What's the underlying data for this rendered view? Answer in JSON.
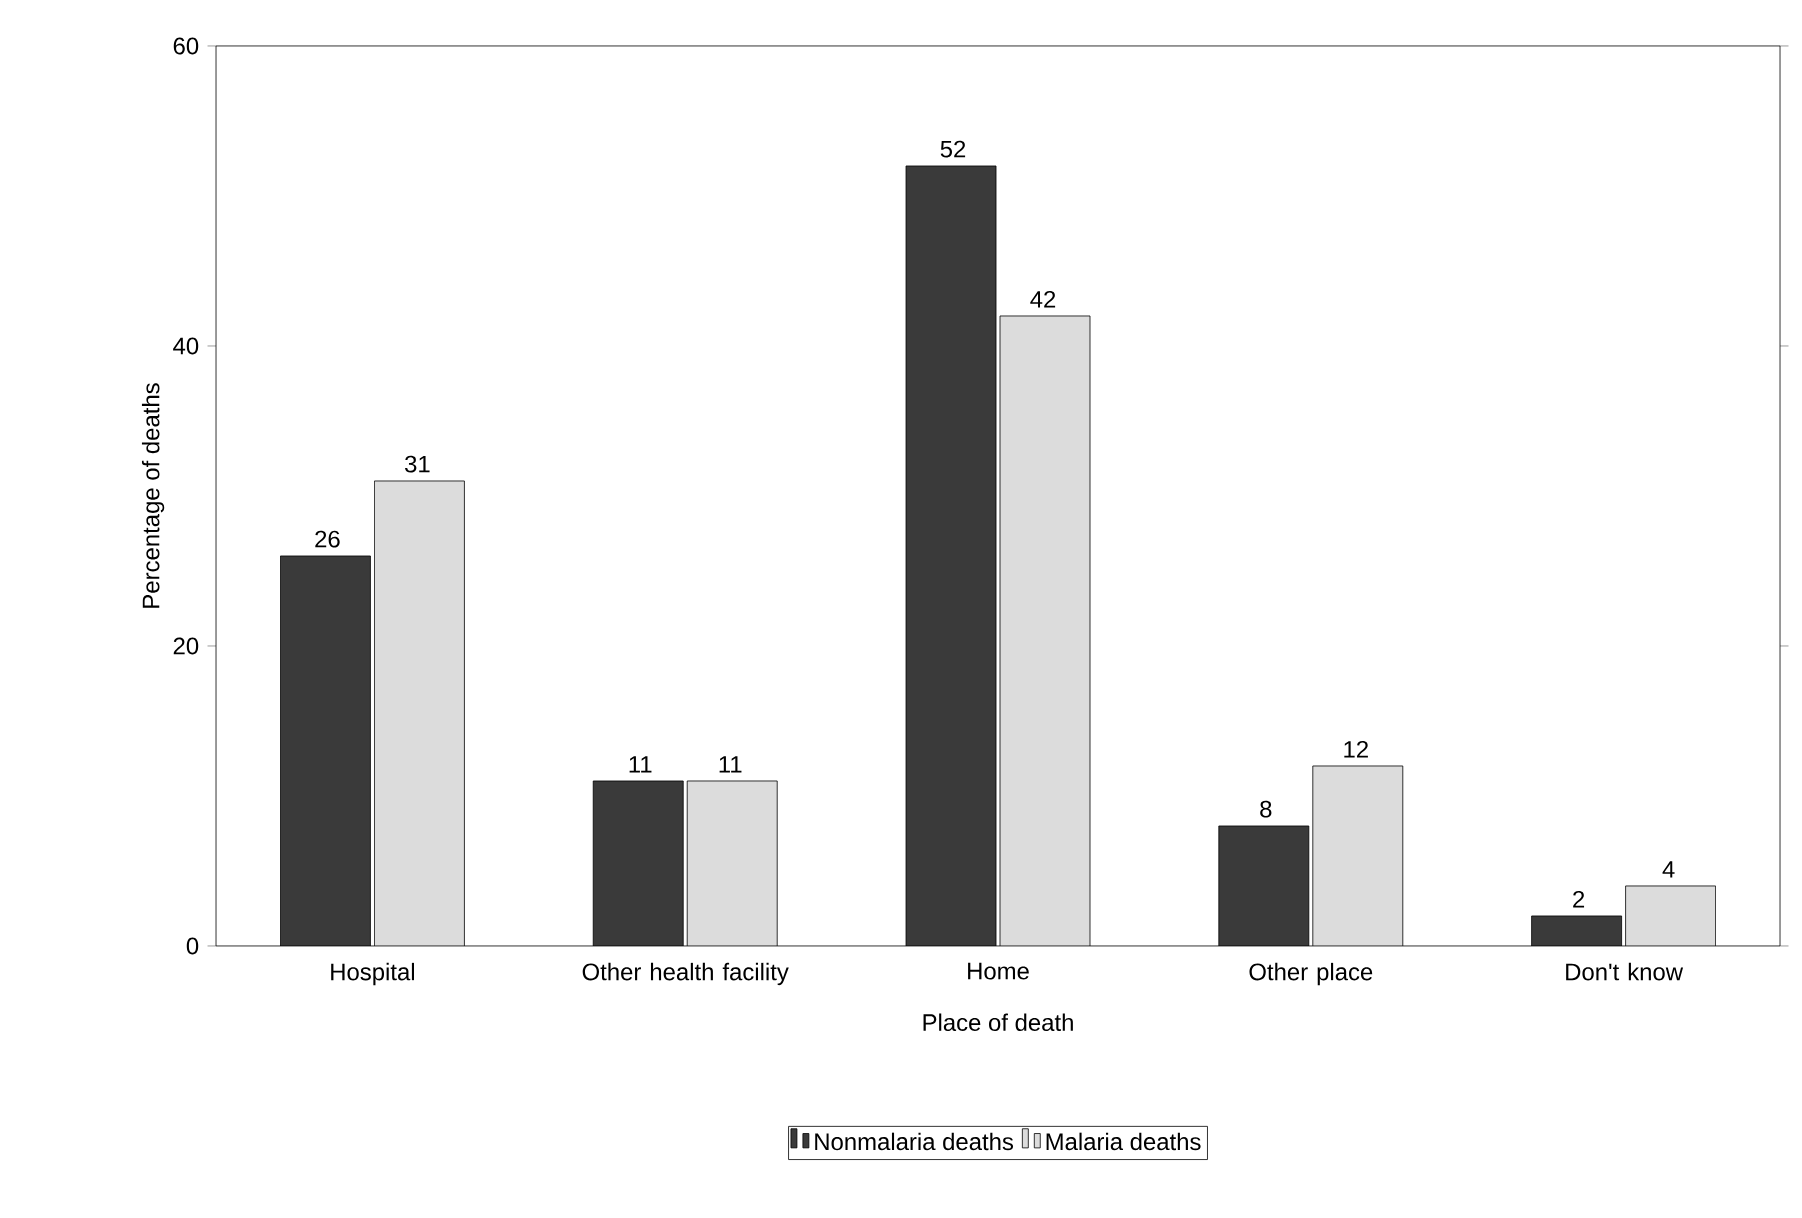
{
  "chart_data": {
    "type": "bar",
    "xlabel": "Place of death",
    "ylabel": "Percentage of deaths",
    "categories": [
      "Hospital",
      "Other health facility",
      "Home",
      "Other place",
      "Don't know"
    ],
    "series": [
      {
        "name": "Nonmalaria deaths",
        "color": "#3a3a3a",
        "values": [
          26,
          11,
          52,
          8,
          2
        ]
      },
      {
        "name": "Malaria deaths",
        "color": "#dcdcdc",
        "values": [
          31,
          11,
          42,
          12,
          4
        ]
      }
    ],
    "ylim": [
      0,
      60
    ],
    "yticks": [
      0,
      20,
      40,
      60
    ],
    "grid": false,
    "legend": "bottom",
    "data_labels": true
  }
}
